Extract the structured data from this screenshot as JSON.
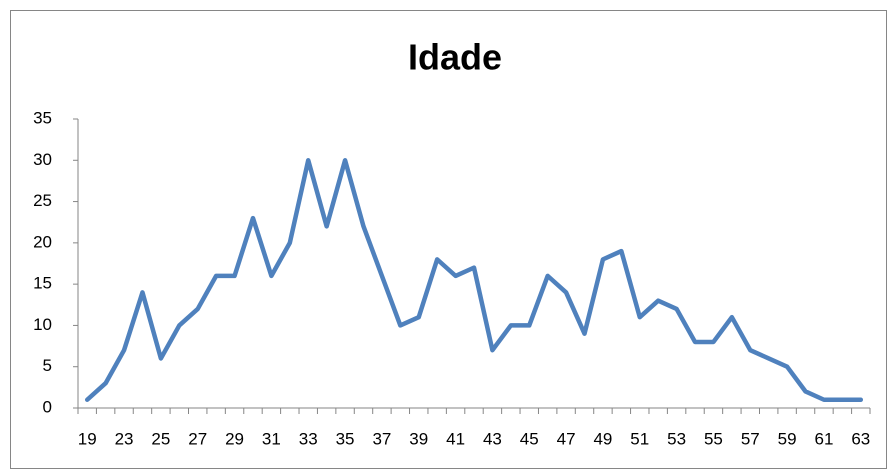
{
  "chart_data": {
    "type": "line",
    "title": "Idade",
    "categories": [
      19,
      null,
      23,
      null,
      25,
      null,
      27,
      null,
      29,
      null,
      31,
      null,
      33,
      null,
      35,
      null,
      37,
      null,
      39,
      null,
      41,
      null,
      43,
      null,
      45,
      null,
      47,
      null,
      49,
      null,
      51,
      null,
      53,
      null,
      55,
      null,
      57,
      null,
      59,
      null,
      61,
      null,
      63
    ],
    "values": [
      1,
      3,
      7,
      14,
      6,
      10,
      12,
      16,
      16,
      23,
      16,
      20,
      30,
      22,
      30,
      22,
      16,
      10,
      11,
      18,
      16,
      17,
      7,
      10,
      10,
      16,
      14,
      9,
      18,
      19,
      11,
      13,
      12,
      8,
      8,
      11,
      7,
      6,
      5,
      2,
      1,
      1,
      1
    ],
    "color": "#4f81bd",
    "ylim": [
      0,
      35
    ],
    "yticks": [
      0,
      5,
      10,
      15,
      20,
      25,
      30,
      35
    ],
    "grid": false
  }
}
